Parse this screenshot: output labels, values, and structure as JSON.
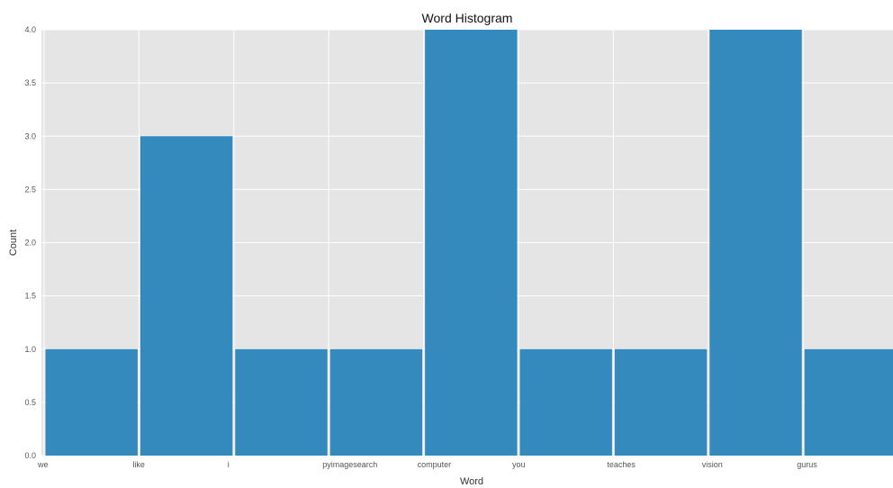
{
  "chart_data": {
    "type": "bar",
    "title": "Word Histogram",
    "xlabel": "Word",
    "ylabel": "Count",
    "categories": [
      "we",
      "like",
      "i",
      "pyimagesearch",
      "computer",
      "you",
      "teaches",
      "vision",
      "gurus"
    ],
    "values": [
      1,
      3,
      1,
      1,
      4,
      1,
      1,
      4,
      1
    ],
    "ylim": [
      0,
      4
    ],
    "yticks": [
      "0.0",
      "0.5",
      "1.0",
      "1.5",
      "2.0",
      "2.5",
      "3.0",
      "3.5",
      "4.0"
    ],
    "grid": true,
    "bar_color": "#348abd",
    "panel_color": "#e5e5e5",
    "grid_color": "#ffffff"
  }
}
